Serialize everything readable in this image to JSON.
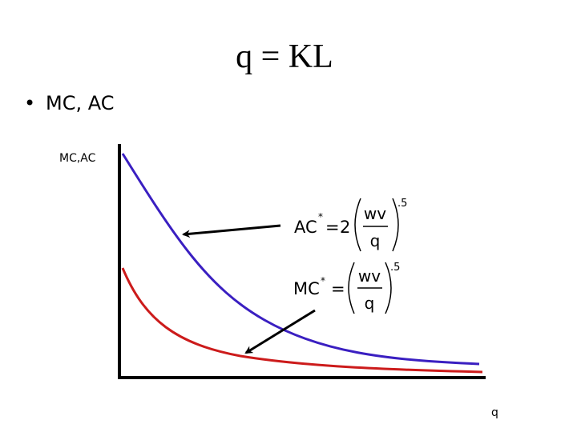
{
  "title": "q = KL",
  "bullet": "MC, AC",
  "y_axis_label": "MC,AC",
  "x_axis_label": "q",
  "formulas": [
    {
      "lhs": "AC",
      "star": "*",
      "eq": "=",
      "coef": "2",
      "numerator": "wv",
      "denominator": "q",
      "exponent": ".5"
    },
    {
      "lhs": "MC",
      "star": "*",
      "eq": "=",
      "numerator": "wv",
      "denominator": "q",
      "exponent": ".5"
    }
  ]
}
